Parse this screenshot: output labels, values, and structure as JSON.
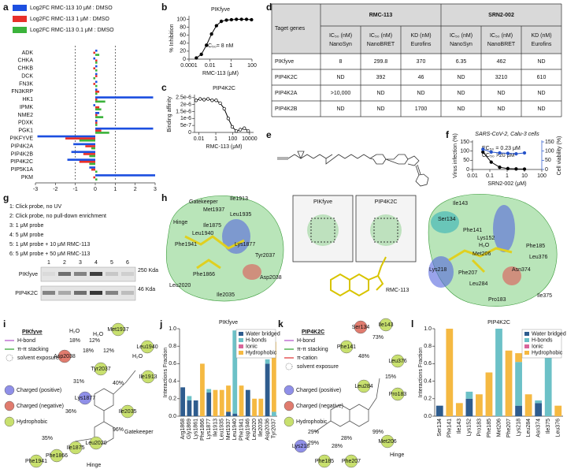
{
  "panel_labels": [
    "a",
    "b",
    "c",
    "d",
    "e",
    "f",
    "g",
    "h",
    "i",
    "j",
    "k",
    "l"
  ],
  "chart_data": [
    {
      "type": "hbar",
      "categories": [
        "ADK",
        "CHKA",
        "CHKB",
        "DCK",
        "FN3K",
        "FN3KRP",
        "HK1",
        "IPMK",
        "NME2",
        "PDXK",
        "PGK1",
        "PIKFYVE",
        "PIP4K2A",
        "PIP4K2B",
        "PIP4K2C",
        "PIP5K1A",
        "PKM"
      ],
      "series": [
        {
          "name": "Log2FC RMC-113 10 μM : DMSO",
          "color": "#1c4fe0",
          "values": [
            0.1,
            -0.1,
            0.1,
            0.1,
            0.1,
            0.1,
            2.9,
            -0.1,
            0.2,
            0.1,
            2.9,
            -2.9,
            -1.1,
            -1.2,
            -1.4,
            -0.3,
            3.0
          ]
        },
        {
          "name": "Log2FC RMC-113 1 μM : DMSO",
          "color": "#e8302a",
          "values": [
            -0.1,
            0.1,
            -0.1,
            0.1,
            -0.1,
            0.2,
            0.1,
            0.2,
            0.1,
            0.1,
            0.3,
            -1.5,
            -0.5,
            -0.6,
            -0.8,
            -0.2,
            -0.1
          ]
        },
        {
          "name": "Log2FC RMC-113 0.1 μM : DMSO",
          "color": "#3bb33b",
          "values": [
            0.2,
            0.1,
            0.1,
            -0.1,
            0.1,
            0.1,
            0.5,
            0.3,
            0.4,
            0.1,
            0.7,
            -0.8,
            -0.2,
            -0.3,
            -0.3,
            0.1,
            0.1
          ]
        }
      ],
      "xlim": [
        -3,
        3
      ],
      "xticks": [
        -3,
        -2,
        -1,
        0,
        1,
        2,
        3
      ],
      "reference_lines": [
        -1,
        1
      ]
    },
    {
      "type": "line",
      "title": "PIKfyve",
      "ylabel": "% Inhibition",
      "xlabel": "RMC-113 (μM)",
      "annotations": [
        "IC₅₀= 8 nM"
      ],
      "xlog": true,
      "xlim": [
        0.0001,
        100
      ],
      "xticks": [
        0.0001,
        0.01,
        1,
        100
      ],
      "ylim": [
        0,
        105
      ],
      "yticks": [
        0,
        20,
        40,
        60,
        80,
        100
      ],
      "series": [
        {
          "color": "#000000",
          "marker": "filled",
          "x": [
            0.0005,
            0.0015,
            0.0046,
            0.014,
            0.041,
            0.12,
            0.37,
            1.1,
            3.3,
            10,
            30,
            90
          ],
          "values": [
            3,
            12,
            35,
            63,
            84,
            95,
            98,
            99,
            100,
            100,
            100,
            99
          ]
        }
      ]
    },
    {
      "type": "line",
      "title": "PIP4K2C",
      "ylabel": "Binding affinity",
      "xlabel": "RMC-113 (μM)",
      "xlog": true,
      "xlim": [
        0.003,
        30000
      ],
      "xticks": [
        0.01,
        1,
        100,
        10000
      ],
      "ylim": [
        0,
        2.6e-06
      ],
      "yticks": [
        0,
        {
          "value": 5e-07,
          "label": "5e-7"
        },
        {
          "value": 1e-06,
          "label": "1e-6"
        },
        {
          "value": 1.5e-06,
          "label": "1.5e-6"
        },
        {
          "value": 2e-06,
          "label": "2e-6"
        },
        {
          "value": 2.5e-06,
          "label": "2.5e-6"
        }
      ],
      "series": [
        {
          "color": "#000000",
          "marker": "open",
          "x": [
            0.0046,
            0.014,
            0.041,
            0.12,
            0.37,
            1.1,
            3.3,
            10,
            30,
            90,
            270,
            800,
            2400,
            7000
          ],
          "values": [
            2.3e-06,
            2.4e-06,
            2.35e-06,
            2.4e-06,
            2.3e-06,
            2.3e-06,
            2.1e-06,
            1.7e-06,
            1e-06,
            4e-07,
            1e-07,
            2e-07,
            3e-07,
            1e-07
          ]
        }
      ]
    },
    {
      "type": "line",
      "title": "SARS-CoV-2, Calu-3 cells",
      "ylabel": "Virus infection (%)",
      "y2label": "Cell viability (%)",
      "xlabel": "SRN2-002 (μM)",
      "annotations": [
        "EC₅₀ = 0.23 μM",
        "CC₅₀ >20 μM"
      ],
      "xlog": true,
      "xlim": [
        0.01,
        100
      ],
      "xticks": [
        0.01,
        0.1,
        1,
        10,
        100
      ],
      "ylim": [
        0,
        150
      ],
      "yticks": [
        0,
        50,
        100,
        150
      ],
      "y2lim": [
        0,
        150
      ],
      "y2ticks": [
        0,
        50,
        100,
        150
      ],
      "series": [
        {
          "color": "#000000",
          "marker": "filled",
          "x": [
            0.04,
            0.12,
            0.37,
            1.1,
            3.3,
            10
          ],
          "values": [
            95,
            40,
            12,
            5,
            3,
            2
          ]
        },
        {
          "color": "#2653c9",
          "marker": "filled",
          "axis": "y2",
          "x": [
            0.04,
            0.12,
            0.37,
            1.1,
            3.3,
            10
          ],
          "values": [
            110,
            95,
            90,
            88,
            85,
            90
          ]
        }
      ]
    },
    {
      "type": "stacked_bar",
      "title": "PIKfyve",
      "ylabel": "Interactions Fraction",
      "categories": [
        "Arg1868",
        "Gly1869",
        "Lys1861",
        "Phe1866",
        "Lys1877",
        "Ile1913",
        "Leu1935",
        "Met1937",
        "Leu1940",
        "Phe1941",
        "Asp1946",
        "Leu2020",
        "Ile2035",
        "Asp2036",
        "Tyr2037"
      ],
      "ylim": [
        0,
        1.0
      ],
      "yticks": [
        {
          "value": 0,
          "label": "0.0"
        },
        {
          "value": 0.2,
          "label": "0.2"
        },
        {
          "value": 0.4,
          "label": "0.4"
        },
        {
          "value": 0.6,
          "label": "0.6"
        },
        {
          "value": 0.8,
          "label": "0.8"
        },
        {
          "value": 1.0,
          "label": "1.0"
        }
      ],
      "legend": "top-right",
      "series": [
        {
          "name": "Water bridged",
          "color": "#2e5c8e",
          "values": [
            0.33,
            0.18,
            0.18,
            0,
            0.27,
            0,
            0,
            0.05,
            0.03,
            0,
            0.3,
            0,
            0,
            0.6,
            0
          ]
        },
        {
          "name": "H-bonds",
          "color": "#6cc1c7",
          "values": [
            0,
            0.05,
            0,
            0,
            0.04,
            0,
            0,
            0,
            0.95,
            0,
            0,
            0,
            0,
            0.05,
            0.05
          ]
        },
        {
          "name": "Ionic",
          "color": "#d9659a",
          "values": [
            0,
            0,
            0,
            0,
            0,
            0,
            0,
            0,
            0,
            0,
            0,
            0,
            0,
            0,
            0
          ]
        },
        {
          "name": "Hydrophobic",
          "color": "#f5b942",
          "values": [
            0,
            0,
            0,
            0.6,
            0,
            0.3,
            0.3,
            0.3,
            0,
            0.35,
            0,
            0.2,
            0.2,
            0,
            0.8
          ]
        }
      ]
    },
    {
      "type": "stacked_bar",
      "title": "PIP4K2C",
      "ylabel": "Interactions Fraction",
      "categories": [
        "Ser134",
        "Phe141",
        "Ile143",
        "Lys152",
        "Pro183",
        "Phe185",
        "Met206",
        "Phe207",
        "Lys218",
        "Leu284",
        "Asn374",
        "Ile375",
        "Leu376"
      ],
      "ylim": [
        0,
        1.0
      ],
      "yticks": [
        {
          "value": 0,
          "label": "0.0"
        },
        {
          "value": 0.2,
          "label": "0.2"
        },
        {
          "value": 0.4,
          "label": "0.4"
        },
        {
          "value": 0.6,
          "label": "0.6"
        },
        {
          "value": 0.8,
          "label": "0.8"
        },
        {
          "value": 1.0,
          "label": "1.0"
        }
      ],
      "legend": "top-right",
      "series": [
        {
          "name": "Water bridged",
          "color": "#2e5c8e",
          "values": [
            0.12,
            0,
            0,
            0.2,
            0,
            0,
            0,
            0,
            0.12,
            0,
            0.15,
            0,
            0
          ]
        },
        {
          "name": "H-bonds",
          "color": "#6cc1c7",
          "values": [
            0,
            0,
            0,
            0.08,
            0,
            0,
            1.0,
            0,
            0.5,
            0,
            0.03,
            0.75,
            0
          ]
        },
        {
          "name": "Ionic",
          "color": "#d9659a",
          "values": [
            0,
            0,
            0,
            0,
            0,
            0,
            0,
            0,
            0,
            0,
            0,
            0,
            0
          ]
        },
        {
          "name": "Hydrophobic",
          "color": "#f5b942",
          "values": [
            0,
            1.0,
            0.15,
            0,
            0.25,
            0.5,
            0,
            0.75,
            0.1,
            0.25,
            0,
            0,
            0.12
          ]
        }
      ]
    }
  ],
  "table": {
    "header": [
      "Taget genes",
      "RMC-113",
      "SRN2-002"
    ],
    "subheader": [
      [
        "IC₅₀ (nM)",
        "NanoSyn"
      ],
      [
        "IC₅₀ (nM)",
        "NanoBRET"
      ],
      [
        "KD (nM)",
        "Eurofins"
      ],
      [
        "IC₅₀ (nM)",
        "NanoSyn"
      ],
      [
        "IC₅₀ (nM)",
        "NanoBRET"
      ],
      [
        "KD (nM)",
        "Eurofins"
      ]
    ],
    "rows": [
      [
        "PIKfyve",
        8,
        299.8,
        370,
        6.35,
        462,
        "ND"
      ],
      [
        "PIP4K2C",
        "ND",
        392,
        46,
        "ND",
        3210,
        610
      ],
      [
        "PIP4K2A",
        ">10,000",
        "ND",
        "ND",
        "ND",
        "ND",
        "ND"
      ],
      [
        "PIP4K2B",
        "ND",
        "ND",
        1700,
        "ND",
        "ND",
        "ND"
      ]
    ]
  },
  "blot": {
    "legend": [
      "1: Click probe, no UV",
      "2: Click probe, no pull-down enrichment",
      "3: 1 μM probe",
      "4: 5 μM probe",
      "5: 1 μM probe + 10 μM RMC-113",
      "6: 5 μM probe + 50 μM RMC-113"
    ],
    "lanes": [
      1,
      2,
      3,
      4,
      5,
      6
    ],
    "rows": [
      "PIKfyve",
      "PIP4K2C"
    ],
    "markers": [
      "250 Kda",
      "46 Kda"
    ]
  },
  "structures": {
    "left_labels": [
      "Gatekeeper",
      "Met1937",
      "Ile1913",
      "Leu1935",
      "Hinge",
      "Ile1875",
      "Leu1940",
      "Phe1941",
      "Lys1877",
      "Tyr2037",
      "Phe1866",
      "Asp2038",
      "Leu2020",
      "Ile2035"
    ],
    "inset_titles": [
      "PIKfyve",
      "PIP4K2C"
    ],
    "compound": "RMC-113",
    "right_labels": [
      "Ile143",
      "Ser134",
      "Phe141",
      "Lys152",
      "H₂O",
      "Met206",
      "Phe185",
      "Leu376",
      "Lys218",
      "Phe207",
      "Leu284",
      "Asn374",
      "Pro183",
      "Ile375"
    ]
  },
  "interactions_i": {
    "title": "PIKfyve",
    "legend_lines": [
      "H-bond",
      "π-π stacking",
      "solvent exposure"
    ],
    "legend_circles": [
      "Charged (positive)",
      "Charged (negative)",
      "Hydrophobic"
    ],
    "residues": [
      "Met1937",
      "Leu1940",
      "Ile1913",
      "Ile2035",
      "Tyr2037",
      "Asp2038",
      "Lys1877",
      "Leu2020",
      "Ile1875",
      "Phe1866",
      "Phe1941"
    ],
    "percents": [
      "18%",
      "12%",
      "18%",
      "12%",
      "40%",
      "36%",
      "35%",
      "96%",
      "31%"
    ],
    "notes": [
      "Gatekeeper",
      "Hinge",
      "H₂O",
      "H₂O",
      "H₂O"
    ]
  },
  "interactions_k": {
    "title": "PIP4K2C",
    "legend_lines": [
      "H-bond",
      "π-π stacking",
      "π-cation",
      "solvent exposure"
    ],
    "legend_circles": [
      "Charged (positive)",
      "Charged (negative)",
      "Hydrophobic"
    ],
    "residues": [
      "Ser134",
      "Ile143",
      "Phe141",
      "Leu284",
      "Pro183",
      "Leu376",
      "Lys218",
      "Phe185",
      "Phe207",
      "Met206"
    ],
    "percents": [
      "73%",
      "48%",
      "29%",
      "29%",
      "28%",
      "28%",
      "99%",
      "15%"
    ],
    "notes": [
      "Hinge"
    ]
  }
}
